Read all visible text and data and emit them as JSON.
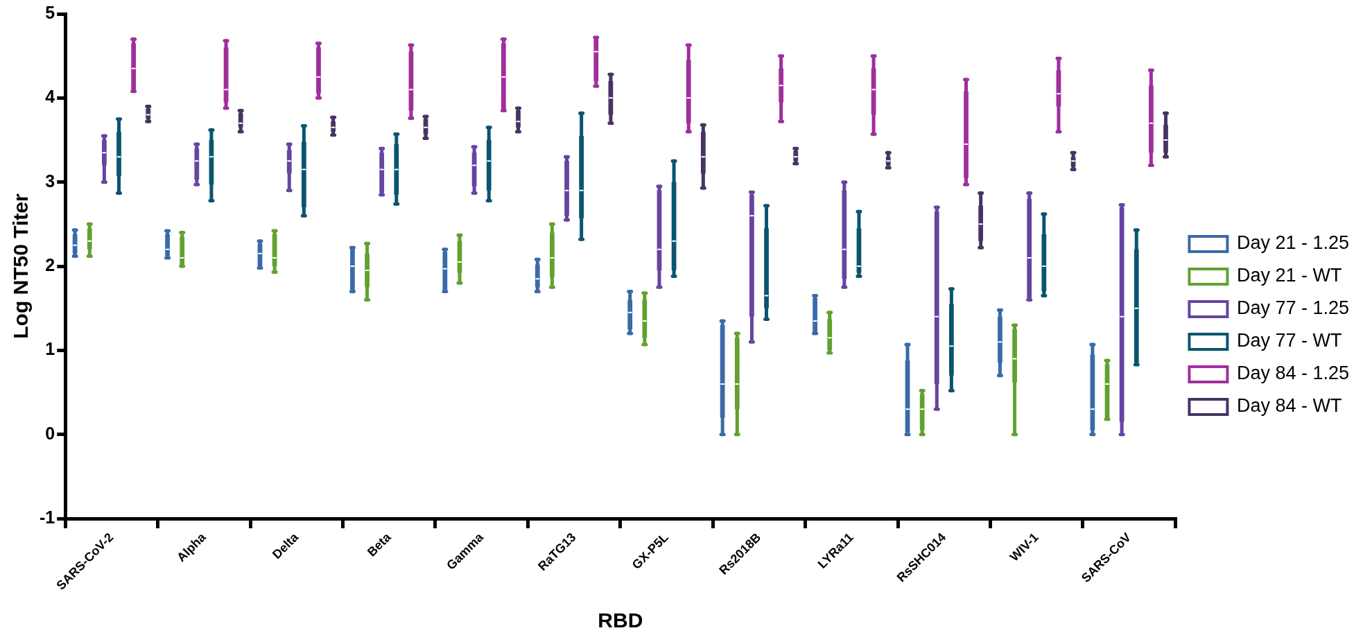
{
  "chart_data": {
    "type": "box",
    "xlabel": "RBD",
    "ylabel": "Log NT50 Titer",
    "categories": [
      "SARS-CoV-2",
      "Alpha",
      "Delta",
      "Beta",
      "Gamma",
      "RaTG13",
      "GX-P5L",
      "Rs2018B",
      "LYRa11",
      "RsSHC014",
      "WIV-1",
      "SARS-CoV"
    ],
    "ylim": [
      -1,
      5
    ],
    "yticks": [
      -1,
      0,
      1,
      2,
      3,
      4,
      5
    ],
    "legend": "right",
    "series": [
      {
        "name": "Day 21 - 1.25",
        "color": "#3a6aa8",
        "boxes": [
          {
            "low": 2.12,
            "q1": 2.15,
            "median": 2.25,
            "q3": 2.38,
            "high": 2.43
          },
          {
            "low": 2.1,
            "q1": 2.12,
            "median": 2.2,
            "q3": 2.38,
            "high": 2.42
          },
          {
            "low": 1.98,
            "q1": 2.0,
            "median": 2.15,
            "q3": 2.27,
            "high": 2.3
          },
          {
            "low": 1.7,
            "q1": 1.72,
            "median": 2.0,
            "q3": 2.2,
            "high": 2.22
          },
          {
            "low": 1.7,
            "q1": 1.72,
            "median": 1.97,
            "q3": 2.17,
            "high": 2.2
          },
          {
            "low": 1.7,
            "q1": 1.75,
            "median": 1.85,
            "q3": 2.02,
            "high": 2.08
          },
          {
            "low": 1.2,
            "q1": 1.25,
            "median": 1.45,
            "q3": 1.6,
            "high": 1.7
          },
          {
            "low": 0.0,
            "q1": 0.2,
            "median": 0.6,
            "q3": 1.3,
            "high": 1.35
          },
          {
            "low": 1.2,
            "q1": 1.2,
            "median": 1.35,
            "q3": 1.62,
            "high": 1.65
          },
          {
            "low": 0.0,
            "q1": 0.0,
            "median": 0.3,
            "q3": 0.88,
            "high": 1.07
          },
          {
            "low": 0.7,
            "q1": 0.85,
            "median": 1.1,
            "q3": 1.4,
            "high": 1.48
          },
          {
            "low": 0.0,
            "q1": 0.05,
            "median": 0.3,
            "q3": 0.95,
            "high": 1.07
          }
        ]
      },
      {
        "name": "Day 21 - WT",
        "color": "#62a030",
        "boxes": [
          {
            "low": 2.12,
            "q1": 2.2,
            "median": 2.3,
            "q3": 2.45,
            "high": 2.5
          },
          {
            "low": 2.0,
            "q1": 2.02,
            "median": 2.1,
            "q3": 2.35,
            "high": 2.4
          },
          {
            "low": 1.93,
            "q1": 2.0,
            "median": 2.1,
            "q3": 2.38,
            "high": 2.42
          },
          {
            "low": 1.6,
            "q1": 1.75,
            "median": 1.95,
            "q3": 2.15,
            "high": 2.27
          },
          {
            "low": 1.8,
            "q1": 1.92,
            "median": 2.05,
            "q3": 2.3,
            "high": 2.37
          },
          {
            "low": 1.75,
            "q1": 1.87,
            "median": 2.1,
            "q3": 2.4,
            "high": 2.5
          },
          {
            "low": 1.07,
            "q1": 1.15,
            "median": 1.35,
            "q3": 1.6,
            "high": 1.68
          },
          {
            "low": 0.0,
            "q1": 0.3,
            "median": 0.6,
            "q3": 1.15,
            "high": 1.2
          },
          {
            "low": 0.97,
            "q1": 1.0,
            "median": 1.15,
            "q3": 1.37,
            "high": 1.45
          },
          {
            "low": 0.0,
            "q1": 0.05,
            "median": 0.3,
            "q3": 0.48,
            "high": 0.52
          },
          {
            "low": 0.0,
            "q1": 0.62,
            "median": 0.9,
            "q3": 1.25,
            "high": 1.3
          },
          {
            "low": 0.18,
            "q1": 0.2,
            "median": 0.6,
            "q3": 0.83,
            "high": 0.88
          }
        ]
      },
      {
        "name": "Day 77 - 1.25",
        "color": "#6644a0",
        "boxes": [
          {
            "low": 3.0,
            "q1": 3.2,
            "median": 3.35,
            "q3": 3.5,
            "high": 3.55
          },
          {
            "low": 2.97,
            "q1": 3.03,
            "median": 3.25,
            "q3": 3.4,
            "high": 3.45
          },
          {
            "low": 2.9,
            "q1": 3.1,
            "median": 3.25,
            "q3": 3.38,
            "high": 3.45
          },
          {
            "low": 2.85,
            "q1": 2.87,
            "median": 3.15,
            "q3": 3.35,
            "high": 3.4
          },
          {
            "low": 2.87,
            "q1": 2.95,
            "median": 3.2,
            "q3": 3.35,
            "high": 3.42
          },
          {
            "low": 2.55,
            "q1": 2.6,
            "median": 2.9,
            "q3": 3.25,
            "high": 3.3
          },
          {
            "low": 1.75,
            "q1": 1.95,
            "median": 2.2,
            "q3": 2.9,
            "high": 2.95
          },
          {
            "low": 1.1,
            "q1": 1.4,
            "median": 2.6,
            "q3": 2.85,
            "high": 2.88
          },
          {
            "low": 1.75,
            "q1": 1.85,
            "median": 2.2,
            "q3": 2.9,
            "high": 3.0
          },
          {
            "low": 0.3,
            "q1": 0.6,
            "median": 1.4,
            "q3": 2.65,
            "high": 2.7
          },
          {
            "low": 1.6,
            "q1": 1.62,
            "median": 2.1,
            "q3": 2.8,
            "high": 2.87
          },
          {
            "low": 0.0,
            "q1": 0.15,
            "median": 1.4,
            "q3": 2.7,
            "high": 2.73
          }
        ]
      },
      {
        "name": "Day 77 - WT",
        "color": "#0b5470",
        "boxes": [
          {
            "low": 2.87,
            "q1": 3.07,
            "median": 3.3,
            "q3": 3.6,
            "high": 3.75
          },
          {
            "low": 2.78,
            "q1": 2.97,
            "median": 3.3,
            "q3": 3.5,
            "high": 3.62
          },
          {
            "low": 2.6,
            "q1": 2.7,
            "median": 3.15,
            "q3": 3.48,
            "high": 3.67
          },
          {
            "low": 2.74,
            "q1": 2.85,
            "median": 3.15,
            "q3": 3.45,
            "high": 3.57
          },
          {
            "low": 2.78,
            "q1": 2.9,
            "median": 3.25,
            "q3": 3.5,
            "high": 3.65
          },
          {
            "low": 2.32,
            "q1": 2.57,
            "median": 2.9,
            "q3": 3.55,
            "high": 3.82
          },
          {
            "low": 1.88,
            "q1": 1.95,
            "median": 2.3,
            "q3": 3.0,
            "high": 3.25
          },
          {
            "low": 1.37,
            "q1": 1.5,
            "median": 1.65,
            "q3": 2.45,
            "high": 2.72
          },
          {
            "low": 1.88,
            "q1": 1.92,
            "median": 2.0,
            "q3": 2.45,
            "high": 2.65
          },
          {
            "low": 0.52,
            "q1": 0.7,
            "median": 1.05,
            "q3": 1.55,
            "high": 1.73
          },
          {
            "low": 1.65,
            "q1": 1.7,
            "median": 2.0,
            "q3": 2.38,
            "high": 2.62
          },
          {
            "low": 0.83,
            "q1": 0.85,
            "median": 1.5,
            "q3": 2.2,
            "high": 2.43
          }
        ]
      },
      {
        "name": "Day 84 - 1.25",
        "color": "#a02e9c",
        "boxes": [
          {
            "low": 4.08,
            "q1": 4.1,
            "median": 4.35,
            "q3": 4.65,
            "high": 4.7
          },
          {
            "low": 3.88,
            "q1": 3.95,
            "median": 4.1,
            "q3": 4.6,
            "high": 4.68
          },
          {
            "low": 4.0,
            "q1": 4.05,
            "median": 4.25,
            "q3": 4.6,
            "high": 4.65
          },
          {
            "low": 3.76,
            "q1": 3.85,
            "median": 4.1,
            "q3": 4.55,
            "high": 4.63
          },
          {
            "low": 3.85,
            "q1": 3.87,
            "median": 4.25,
            "q3": 4.65,
            "high": 4.7
          },
          {
            "low": 4.14,
            "q1": 4.2,
            "median": 4.55,
            "q3": 4.7,
            "high": 4.72
          },
          {
            "low": 3.6,
            "q1": 3.7,
            "median": 4.0,
            "q3": 4.45,
            "high": 4.63
          },
          {
            "low": 3.72,
            "q1": 3.95,
            "median": 4.15,
            "q3": 4.35,
            "high": 4.5
          },
          {
            "low": 3.57,
            "q1": 3.8,
            "median": 4.1,
            "q3": 4.35,
            "high": 4.5
          },
          {
            "low": 2.97,
            "q1": 3.05,
            "median": 3.45,
            "q3": 4.08,
            "high": 4.22
          },
          {
            "low": 3.6,
            "q1": 3.9,
            "median": 4.05,
            "q3": 4.33,
            "high": 4.47
          },
          {
            "low": 3.2,
            "q1": 3.35,
            "median": 3.7,
            "q3": 4.15,
            "high": 4.33
          }
        ]
      },
      {
        "name": "Day 84 - WT",
        "color": "#463462",
        "boxes": [
          {
            "low": 3.72,
            "q1": 3.75,
            "median": 3.8,
            "q3": 3.87,
            "high": 3.9
          },
          {
            "low": 3.6,
            "q1": 3.65,
            "median": 3.7,
            "q3": 3.82,
            "high": 3.85
          },
          {
            "low": 3.56,
            "q1": 3.6,
            "median": 3.65,
            "q3": 3.72,
            "high": 3.77
          },
          {
            "low": 3.52,
            "q1": 3.57,
            "median": 3.65,
            "q3": 3.75,
            "high": 3.78
          },
          {
            "low": 3.6,
            "q1": 3.65,
            "median": 3.72,
            "q3": 3.85,
            "high": 3.88
          },
          {
            "low": 3.7,
            "q1": 3.8,
            "median": 4.0,
            "q3": 4.2,
            "high": 4.28
          },
          {
            "low": 2.93,
            "q1": 3.1,
            "median": 3.3,
            "q3": 3.6,
            "high": 3.68
          },
          {
            "low": 3.22,
            "q1": 3.25,
            "median": 3.3,
            "q3": 3.37,
            "high": 3.4
          },
          {
            "low": 3.17,
            "q1": 3.2,
            "median": 3.25,
            "q3": 3.3,
            "high": 3.35
          },
          {
            "low": 2.22,
            "q1": 2.3,
            "median": 2.5,
            "q3": 2.72,
            "high": 2.87
          },
          {
            "low": 3.15,
            "q1": 3.18,
            "median": 3.25,
            "q3": 3.3,
            "high": 3.35
          },
          {
            "low": 3.3,
            "q1": 3.35,
            "median": 3.5,
            "q3": 3.68,
            "high": 3.82
          }
        ]
      }
    ]
  }
}
